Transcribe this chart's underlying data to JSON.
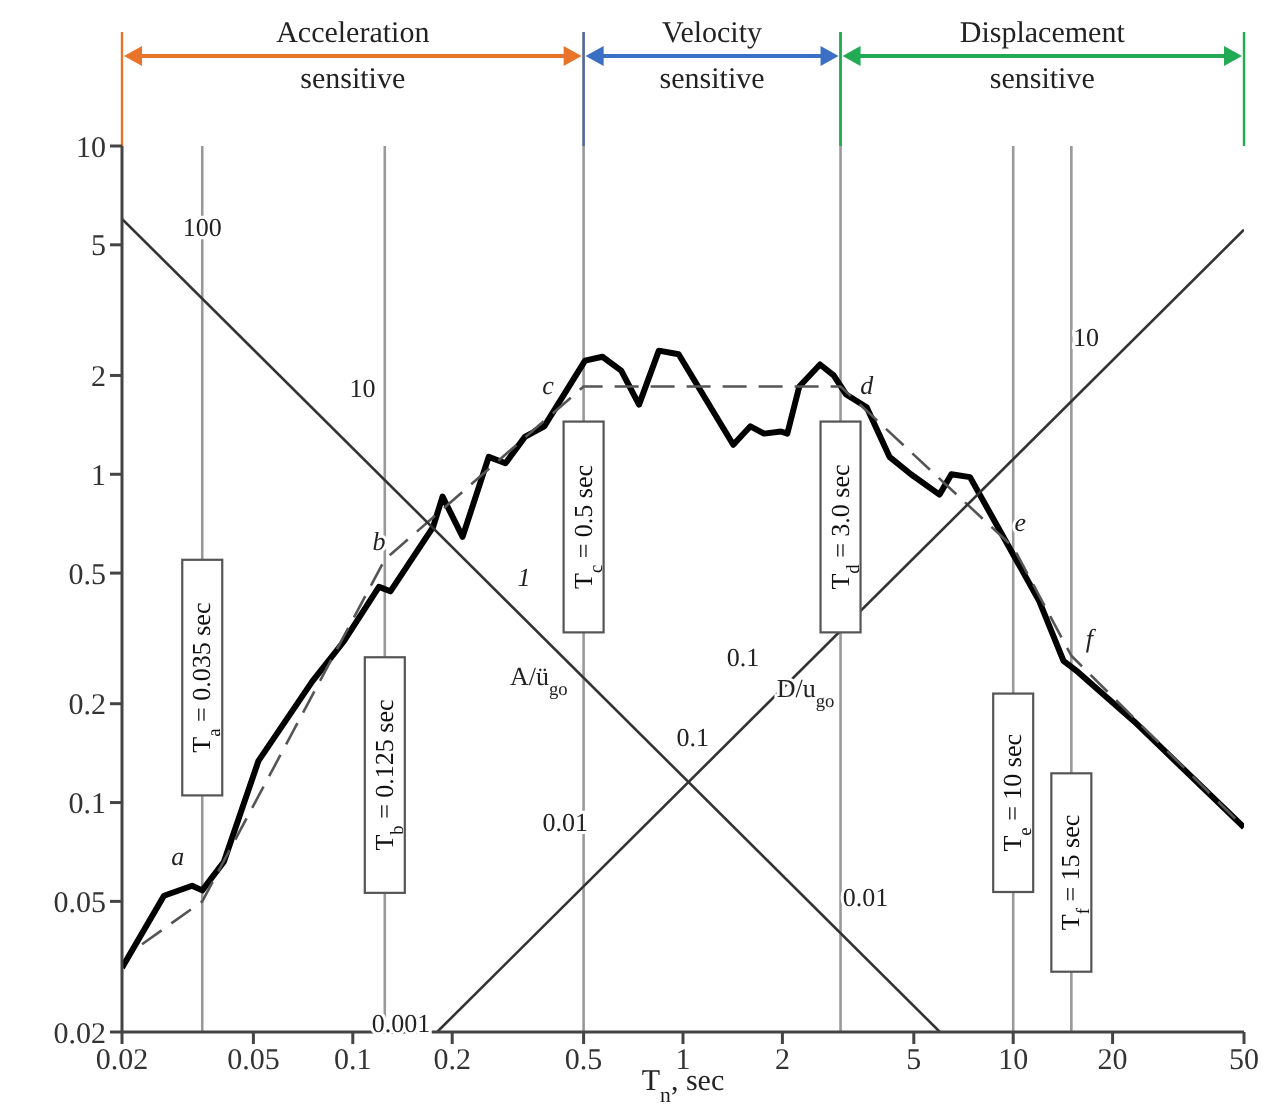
{
  "chart_data": {
    "type": "line",
    "xlabel": "T$_{n}$, sec",
    "log": "xy",
    "xlim": [
      0.02,
      50
    ],
    "ylim": [
      0.02,
      10
    ],
    "xticks": [
      0.02,
      0.05,
      0.1,
      0.2,
      0.5,
      1,
      2,
      5,
      10,
      20,
      50
    ],
    "yticks": [
      0.02,
      0.05,
      0.1,
      0.2,
      0.5,
      1,
      2,
      5,
      10
    ],
    "grid": false,
    "marker": "none",
    "series": [
      {
        "color": "#000000",
        "line_style": "solid",
        "x": [
          0.02,
          0.0268,
          0.0326,
          0.035,
          0.0407,
          0.0518,
          0.0754,
          0.094,
          0.12,
          0.13,
          0.175,
          0.187,
          0.215,
          0.258,
          0.29,
          0.332,
          0.38,
          0.505,
          0.57,
          0.65,
          0.736,
          0.845,
          0.97,
          1.42,
          1.6,
          1.76,
          1.98,
          2.07,
          2.25,
          2.6,
          2.86,
          3.12,
          3.6,
          4.22,
          4.9,
          5.98,
          6.5,
          7.4,
          10,
          12,
          14.2,
          15.7,
          23.2,
          50
        ],
        "values": [
          0.0314,
          0.052,
          0.0558,
          0.054,
          0.066,
          0.134,
          0.234,
          0.31,
          0.454,
          0.44,
          0.69,
          0.855,
          0.645,
          1.13,
          1.08,
          1.3,
          1.4,
          2.22,
          2.28,
          2.07,
          1.63,
          2.38,
          2.32,
          1.23,
          1.4,
          1.33,
          1.35,
          1.33,
          1.85,
          2.16,
          2.0,
          1.75,
          1.6,
          1.13,
          1.0,
          0.867,
          1.0,
          0.98,
          0.57,
          0.41,
          0.27,
          0.25,
          0.177,
          0.084
        ]
      },
      {
        "color": "#555555",
        "line_style": "dashed",
        "x": [
          0.023,
          0.035,
          0.125,
          0.5,
          3,
          10,
          15,
          50
        ],
        "values": [
          0.037,
          0.05,
          0.55,
          1.85,
          1.85,
          0.6,
          0.28,
          0.084
        ]
      },
      {
        "color": "#333333",
        "line_style": "solid",
        "x": [
          0.02,
          6
        ],
        "values": [
          6,
          0.02
        ]
      },
      {
        "color": "#333333",
        "line_style": "solid",
        "x": [
          0.18,
          50
        ],
        "values": [
          0.02,
          5.56
        ]
      }
    ],
    "ref_lines": [
      {
        "axis": "x",
        "value": 0.035,
        "label": "T$_{a}$ = 0.035 sec",
        "color": "#999999"
      },
      {
        "axis": "x",
        "value": 0.125,
        "label": "T$_{b}$ = 0.125 sec",
        "color": "#999999"
      },
      {
        "axis": "x",
        "value": 0.5,
        "label": "T$_{c}$ = 0.5 sec",
        "color": "#999999"
      },
      {
        "axis": "x",
        "value": 3,
        "label": "T$_{d}$ = 3.0 sec",
        "color": "#999999"
      },
      {
        "axis": "x",
        "value": 10,
        "label": "T$_{e}$ = 10 sec",
        "color": "#999999"
      },
      {
        "axis": "x",
        "value": 15,
        "label": "T$_{f}$ = 15 sec",
        "color": "#999999"
      }
    ],
    "annotations": [
      "Acceleration sensitive",
      "Velocity sensitive",
      "Displacement sensitive",
      "a",
      "b",
      "c",
      "d",
      "e",
      "f",
      "100",
      "10",
      "1",
      "A/ü$_{go}$",
      "0.1",
      "0.01",
      "0.001",
      "0.01",
      "0.1",
      "D/u$_{go}$",
      "10"
    ]
  }
}
